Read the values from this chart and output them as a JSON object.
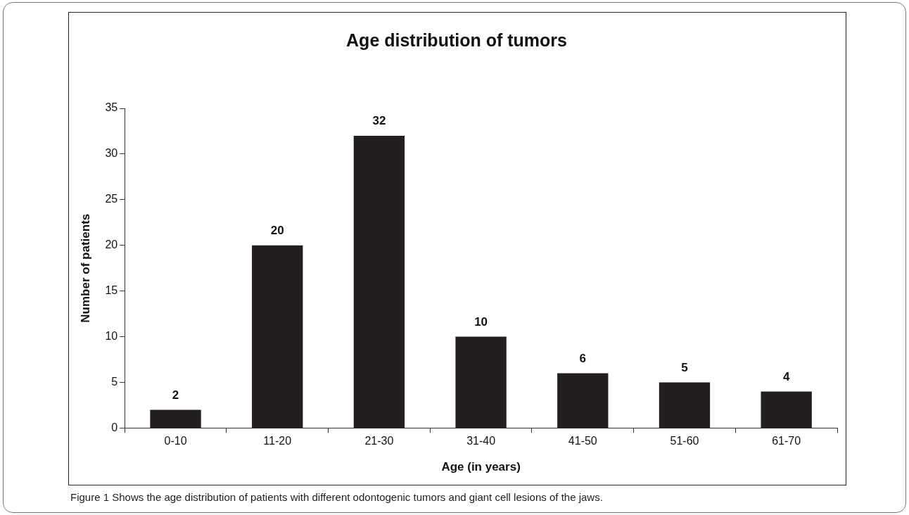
{
  "chart_data": {
    "type": "bar",
    "title": "Age distribution of tumors",
    "xlabel": "Age (in years)",
    "ylabel": "Number of patients",
    "categories": [
      "0-10",
      "11-20",
      "21-30",
      "31-40",
      "41-50",
      "51-60",
      "61-70"
    ],
    "values": [
      2,
      20,
      32,
      10,
      6,
      5,
      4
    ],
    "color": "#231f20",
    "ylim": [
      0,
      35
    ],
    "yticks": [
      0,
      5,
      10,
      15,
      20,
      25,
      30,
      35
    ],
    "grid": false,
    "legend": false,
    "data_labels": true,
    "annotations": [
      "Figure 1 Shows the age distribution of patients with different odontogenic tumors and giant cell lesions of the jaws."
    ]
  }
}
